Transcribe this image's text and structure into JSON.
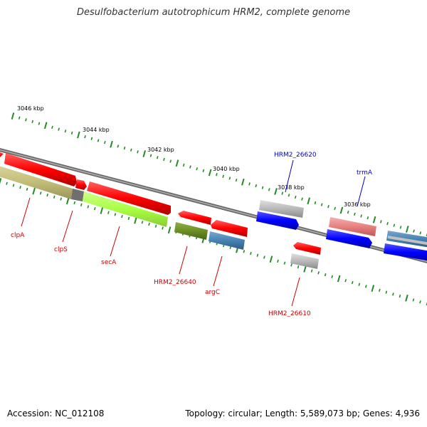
{
  "title": "Desulfobacterium autotrophicum HRM2, complete genome",
  "footer": {
    "accession": "Accession: NC_012108",
    "summary": "Topology: circular; Length: 5,589,073 bp; Genes: 4,936"
  },
  "ruler": {
    "labels": [
      "3046 kbp",
      "3044 kbp",
      "3042 kbp",
      "3040 kbp",
      "3038 kbp",
      "3036 kbp"
    ]
  },
  "genes": [
    {
      "id": "clpA",
      "label": "clpA",
      "color": "#cc0000"
    },
    {
      "id": "clpS",
      "label": "clpS",
      "color": "#cc0000"
    },
    {
      "id": "secA",
      "label": "secA",
      "color": "#cc0000"
    },
    {
      "id": "HRM2_26640",
      "label": "HRM2_26640",
      "color": "#cc0000"
    },
    {
      "id": "argC",
      "label": "argC",
      "color": "#cc0000"
    },
    {
      "id": "HRM2_26610",
      "label": "HRM2_26610",
      "color": "#cc0000"
    },
    {
      "id": "HRM2_26620",
      "label": "HRM2_26620",
      "color": "#0000cc"
    },
    {
      "id": "trmA",
      "label": "trmA",
      "color": "#0000cc"
    }
  ],
  "colors": {
    "forward_gene": "#ff0000",
    "reverse_gene": "#0000ff",
    "backbone": "#808080",
    "ruler_tick": "#228b22",
    "cog_olive": "#c2bd78",
    "cog_lime": "#aaff44",
    "cog_darkolive": "#6b8e23",
    "cog_steelblue": "#4682b4",
    "cog_gray": "#b0b0b0",
    "cog_salmon": "#e88080"
  }
}
